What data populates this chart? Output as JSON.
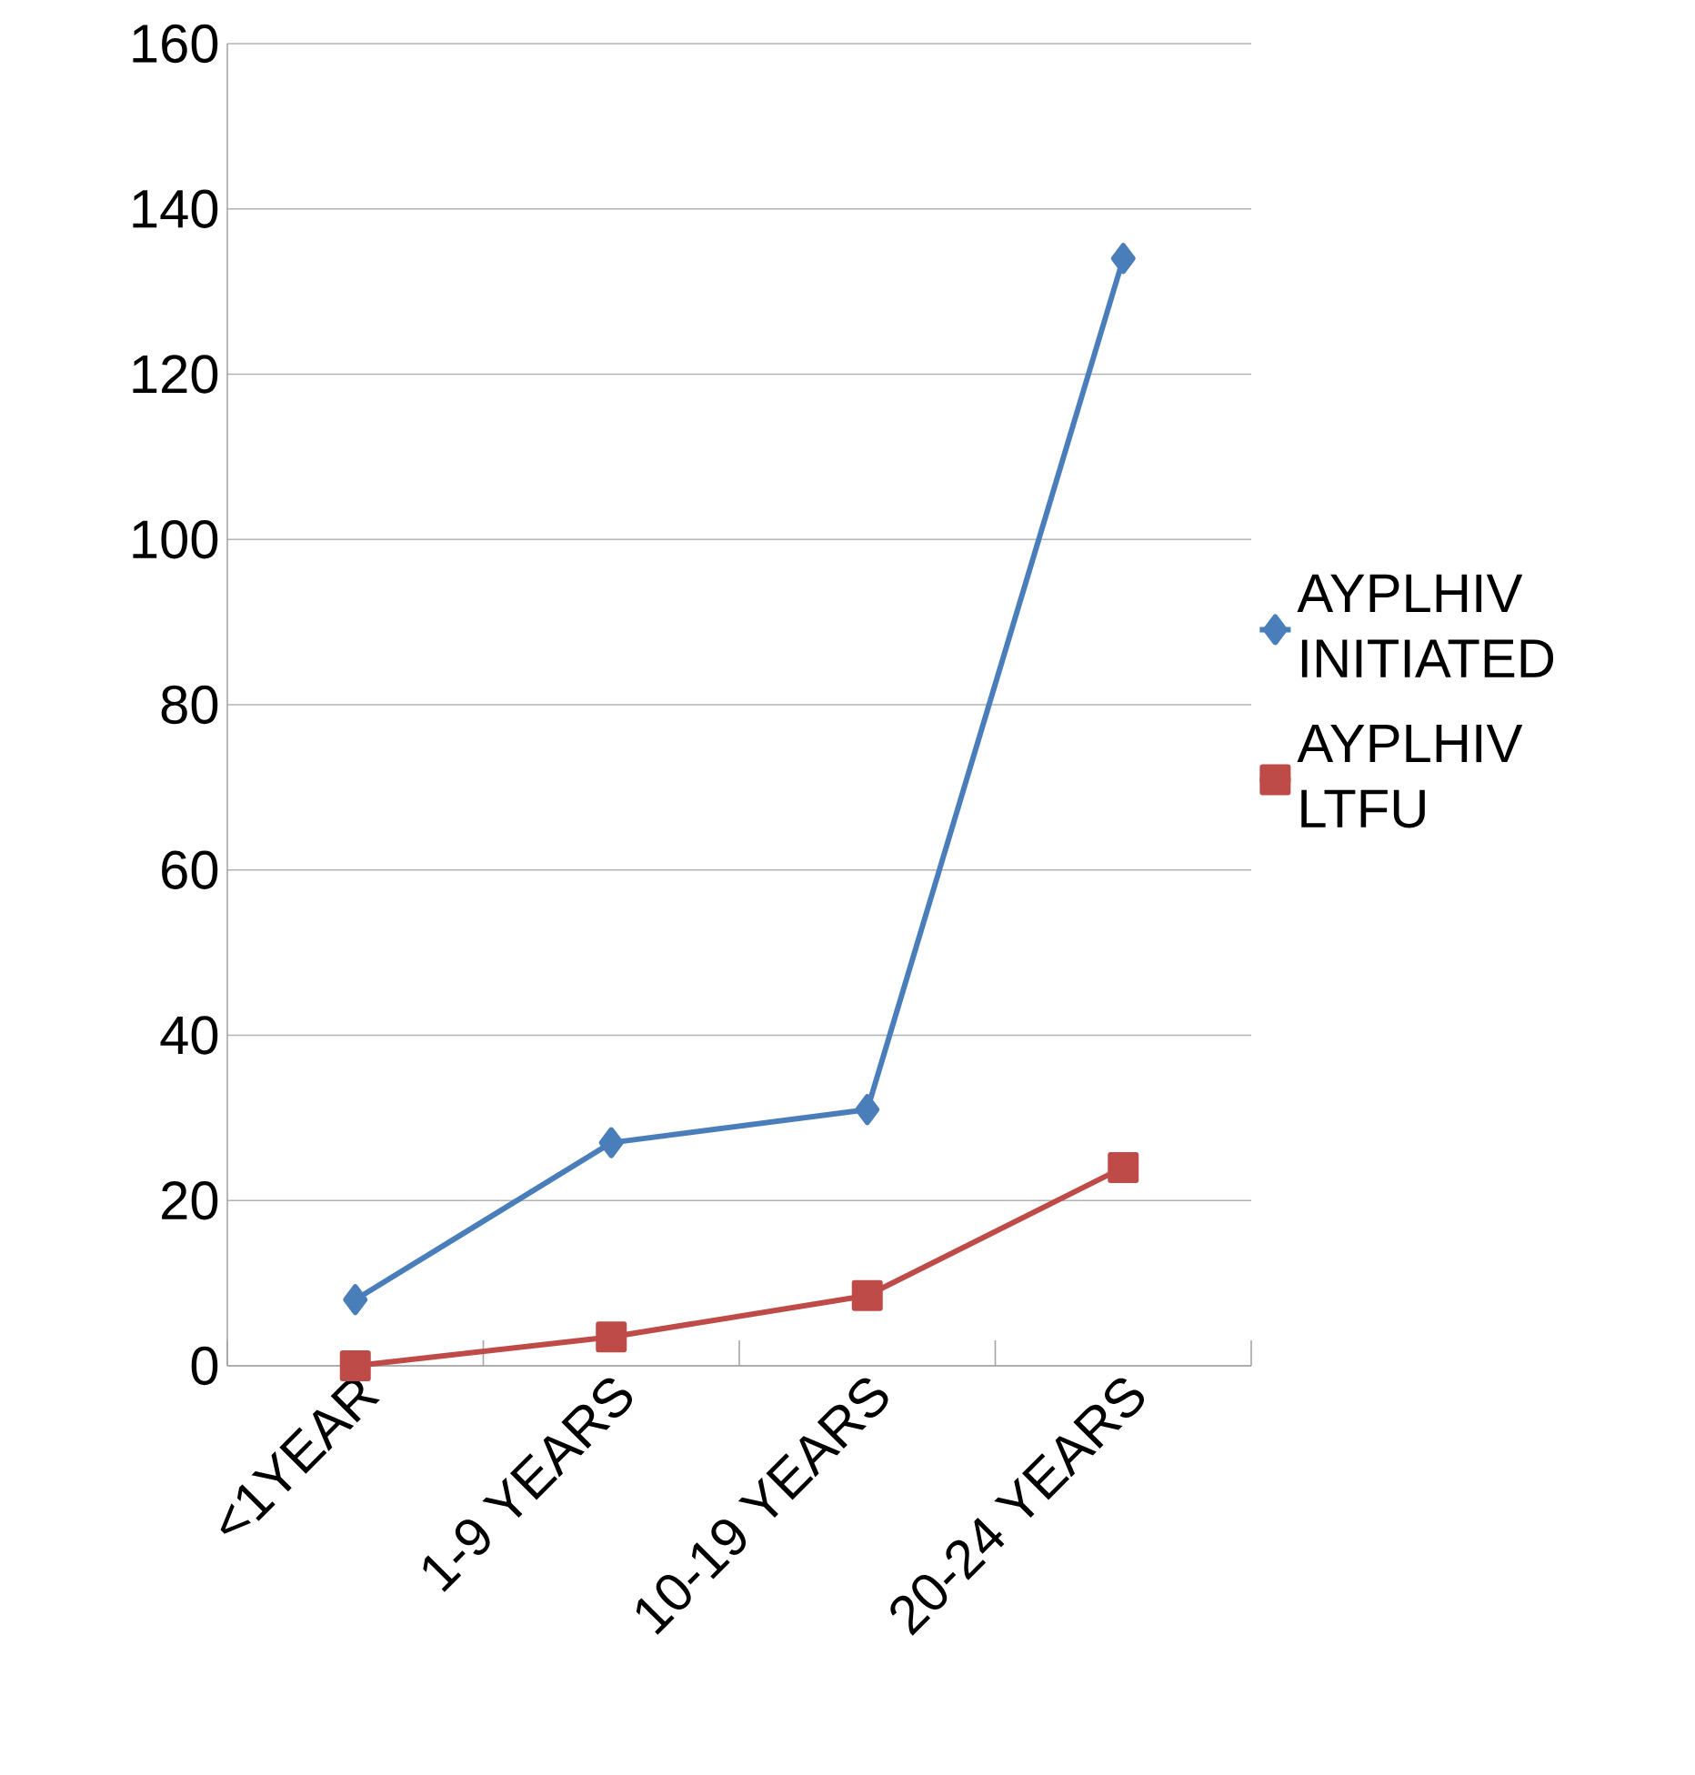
{
  "chart_data": {
    "type": "line",
    "categories": [
      "<1YEAR",
      "1-9 YEARS",
      "10-19 YEARS",
      "20-24 YEARS"
    ],
    "series": [
      {
        "name": "AYPLHIV INITIATED",
        "color": "#4a7ebb",
        "marker": "diamond",
        "values": [
          8,
          27,
          31,
          134
        ]
      },
      {
        "name": "AYPLHIV LTFU",
        "color": "#be4b48",
        "marker": "square",
        "values": [
          0,
          3.5,
          8.5,
          24
        ]
      }
    ],
    "ylim": [
      0,
      160
    ],
    "yticks": [
      0,
      20,
      40,
      60,
      80,
      100,
      120,
      140,
      160
    ],
    "grid": "y",
    "legend": "right",
    "line_style": "solid"
  }
}
